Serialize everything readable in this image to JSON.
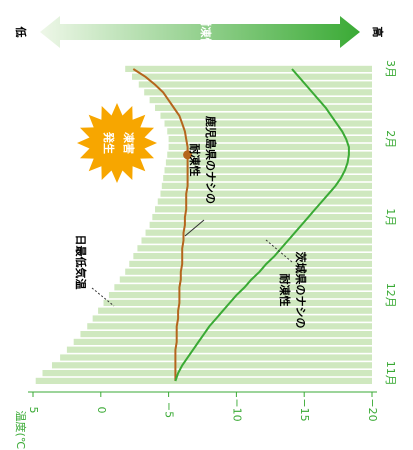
{
  "chart_data": {
    "type": "bar",
    "scale_label": "耐凍性",
    "scale_low": "低",
    "scale_high": "高",
    "ylabel": "温度(℃)",
    "ylim": [
      -20,
      5
    ],
    "yticks": [
      5,
      0,
      {
        "value": -5,
        "label": "−5"
      },
      {
        "value": -10,
        "label": "−10"
      },
      {
        "value": -15,
        "label": "−15"
      },
      {
        "value": -20,
        "label": "−20"
      }
    ],
    "categories": [
      null,
      "11月",
      null,
      null,
      null,
      null,
      null,
      null,
      null,
      null,
      null,
      "12月",
      null,
      null,
      null,
      null,
      null,
      null,
      null,
      null,
      null,
      "1月",
      null,
      null,
      null,
      null,
      null,
      null,
      null,
      null,
      null,
      "2月",
      null,
      null,
      null,
      null,
      null,
      null,
      null,
      null,
      "3月"
    ],
    "bars": {
      "name": "日最低気温",
      "color": "#cfe8bf",
      "values": [
        4.8,
        4.3,
        3.6,
        3.0,
        2.5,
        2.0,
        1.5,
        1.0,
        0.6,
        0.2,
        -0.2,
        -0.6,
        -1.0,
        -1.4,
        -1.8,
        -2.1,
        -2.4,
        -2.7,
        -3.0,
        -3.3,
        -3.6,
        -3.8,
        -4.0,
        -4.2,
        -4.4,
        -4.5,
        -4.6,
        -4.7,
        -4.8,
        -4.9,
        -5.0,
        -5.0,
        -4.9,
        -4.7,
        -4.4,
        -4.0,
        -3.6,
        -3.2,
        -2.8,
        -2.3,
        -1.8
      ]
    },
    "series": [
      {
        "name": [
          "鹿児島県のナシの",
          "耐凍性"
        ],
        "color": "#b5651d",
        "values": [
          -5.5,
          -5.5,
          -5.5,
          -5.5,
          -5.5,
          -5.6,
          -5.6,
          -5.6,
          -5.7,
          -5.7,
          -5.8,
          -5.8,
          -5.8,
          -5.9,
          -5.9,
          -6.0,
          -6.0,
          -6.0,
          -6.1,
          -6.1,
          -6.2,
          -6.2,
          -6.3,
          -6.3,
          -6.3,
          -6.4,
          -6.4,
          -6.4,
          -6.4,
          -6.4,
          -6.4,
          -6.3,
          -6.2,
          -6.0,
          -5.8,
          -5.4,
          -5.0,
          -4.6,
          -4.0,
          -3.3,
          -2.4
        ]
      },
      {
        "name": [
          "茨城県のナシの",
          "耐凍性"
        ],
        "color": "#3aaa35",
        "values": [
          -5.5,
          -5.7,
          -6.0,
          -6.4,
          -6.8,
          -7.2,
          -7.6,
          -8.0,
          -8.5,
          -9.0,
          -9.5,
          -10.0,
          -10.6,
          -11.1,
          -11.7,
          -12.2,
          -12.8,
          -13.3,
          -13.8,
          -14.3,
          -14.8,
          -15.3,
          -15.8,
          -16.3,
          -16.8,
          -17.3,
          -17.7,
          -18.0,
          -18.2,
          -18.3,
          -18.3,
          -18.1,
          -17.8,
          -17.4,
          -17.0,
          -16.6,
          -16.1,
          -15.6,
          -15.1,
          -14.6,
          -14.1
        ]
      }
    ],
    "frost": [
      "凍害",
      "発生"
    ]
  }
}
